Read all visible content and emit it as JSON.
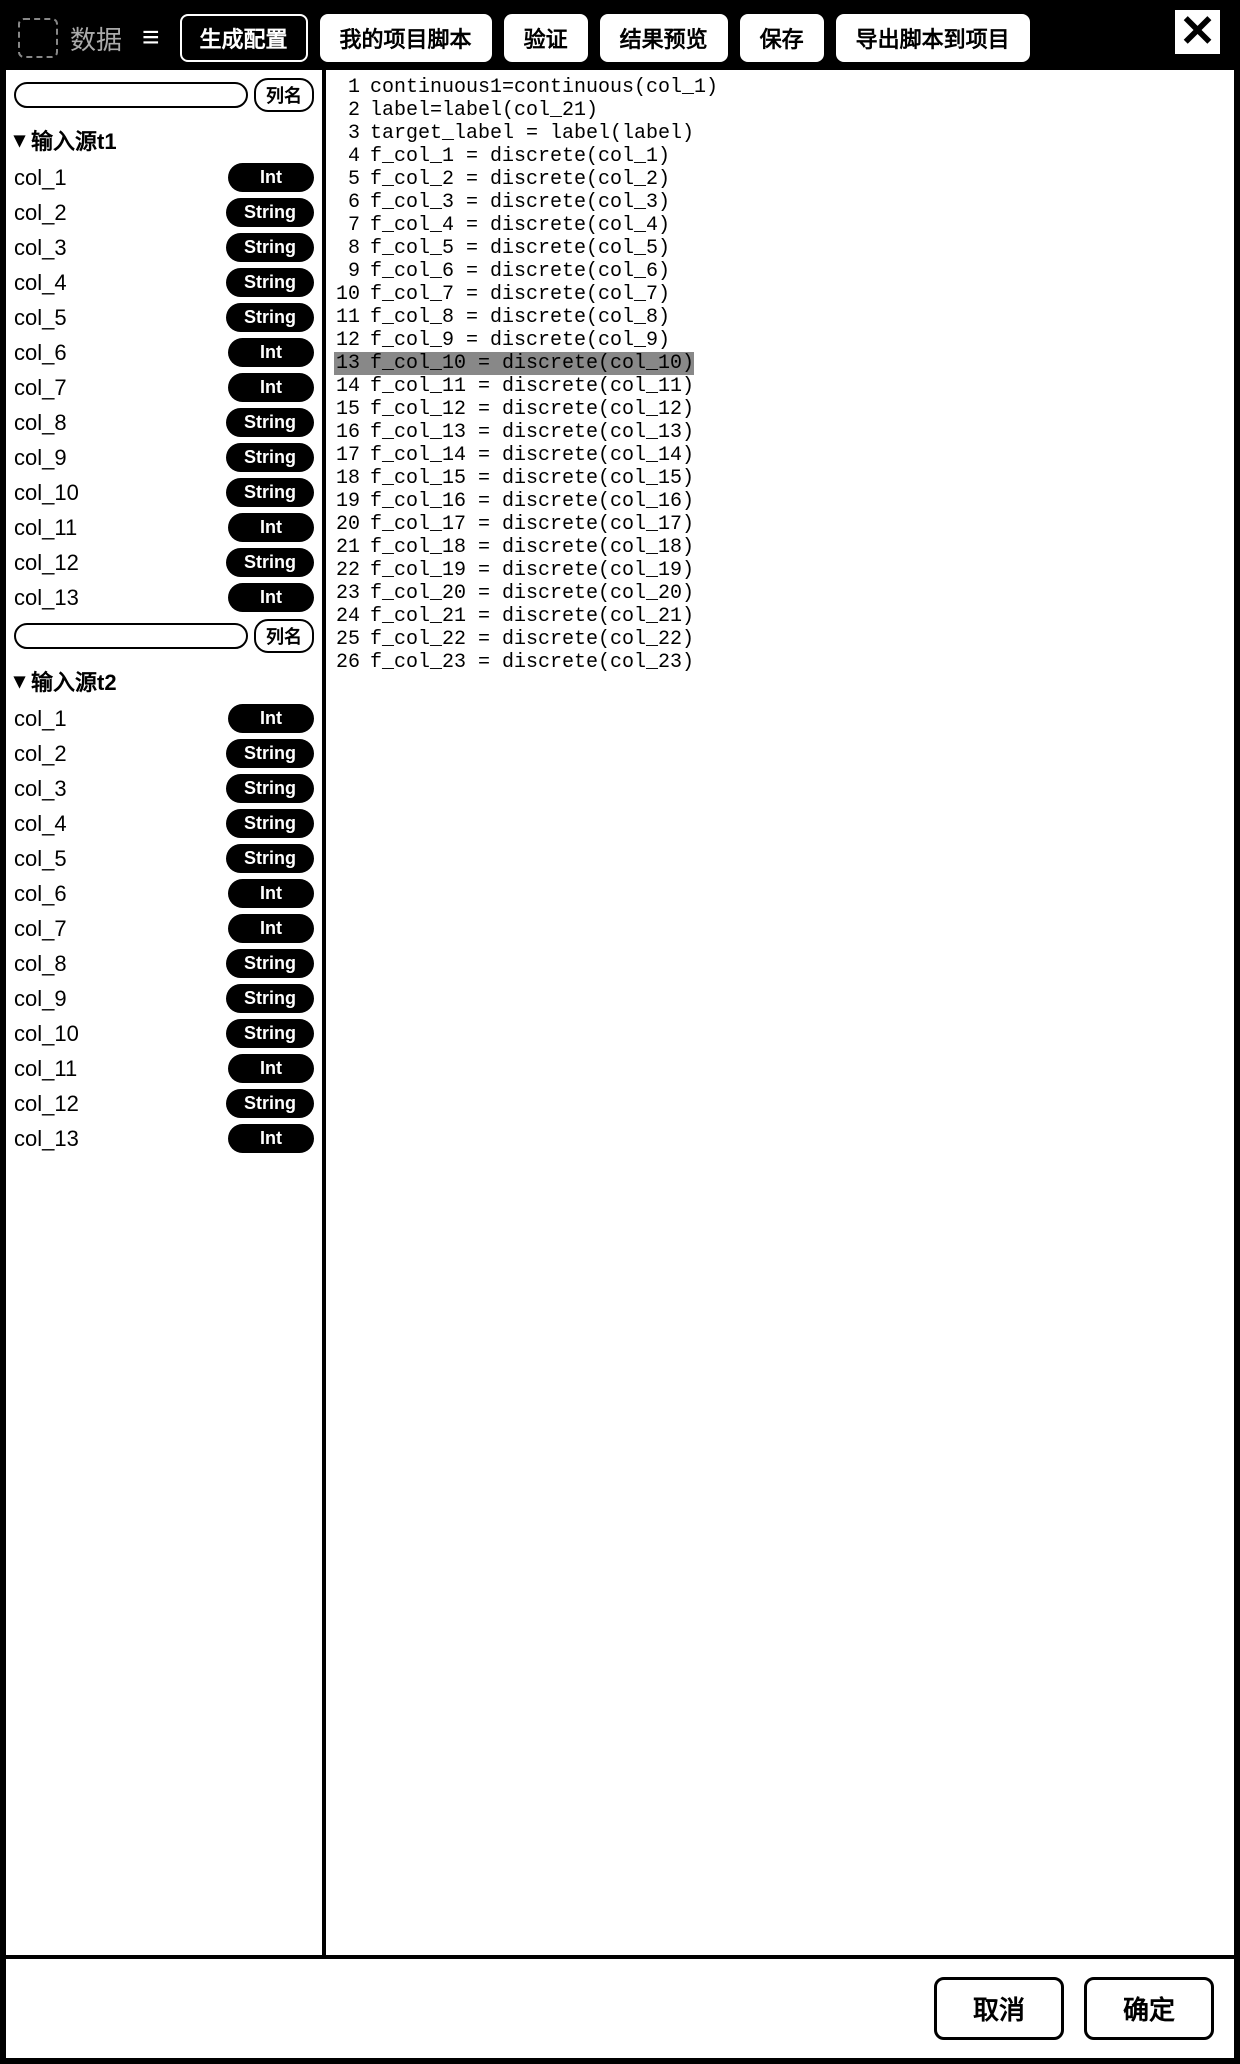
{
  "window": {
    "title": "数据",
    "close_glyph": "✕"
  },
  "header": {
    "menu_glyph": "≡",
    "tabs": {
      "generate": "生成配置",
      "my_script": "我的项目脚本"
    },
    "buttons": {
      "validate": "验证",
      "preview": "结果预览",
      "save": "保存",
      "export": "导出脚本到项目"
    }
  },
  "sidebar": {
    "search_placeholder": "",
    "groups": [
      {
        "title": "输入源t1",
        "count": "列名",
        "columns": [
          {
            "name": "col_1",
            "type": "Int"
          },
          {
            "name": "col_2",
            "type": "String"
          },
          {
            "name": "col_3",
            "type": "String"
          },
          {
            "name": "col_4",
            "type": "String"
          },
          {
            "name": "col_5",
            "type": "String"
          },
          {
            "name": "col_6",
            "type": "Int"
          },
          {
            "name": "col_7",
            "type": "Int"
          },
          {
            "name": "col_8",
            "type": "String"
          },
          {
            "name": "col_9",
            "type": "String"
          },
          {
            "name": "col_10",
            "type": "String"
          },
          {
            "name": "col_11",
            "type": "Int"
          },
          {
            "name": "col_12",
            "type": "String"
          },
          {
            "name": "col_13",
            "type": "Int"
          }
        ]
      },
      {
        "title": "输入源t2",
        "count": "列名",
        "columns": [
          {
            "name": "col_1",
            "type": "Int"
          },
          {
            "name": "col_2",
            "type": "String"
          },
          {
            "name": "col_3",
            "type": "String"
          },
          {
            "name": "col_4",
            "type": "String"
          },
          {
            "name": "col_5",
            "type": "String"
          },
          {
            "name": "col_6",
            "type": "Int"
          },
          {
            "name": "col_7",
            "type": "Int"
          },
          {
            "name": "col_8",
            "type": "String"
          },
          {
            "name": "col_9",
            "type": "String"
          },
          {
            "name": "col_10",
            "type": "String"
          },
          {
            "name": "col_11",
            "type": "Int"
          },
          {
            "name": "col_12",
            "type": "String"
          },
          {
            "name": "col_13",
            "type": "Int"
          }
        ]
      }
    ]
  },
  "editor": {
    "lines": [
      {
        "n": 1,
        "text": "continuous1=continuous(col_1)",
        "hl": false
      },
      {
        "n": 2,
        "text": "label=label(col_21)",
        "hl": false
      },
      {
        "n": 3,
        "text": "target_label = label(label)",
        "hl": false
      },
      {
        "n": 4,
        "text": "f_col_1 = discrete(col_1)",
        "hl": false
      },
      {
        "n": 5,
        "text": "f_col_2 = discrete(col_2)",
        "hl": false
      },
      {
        "n": 6,
        "text": "f_col_3 = discrete(col_3)",
        "hl": false
      },
      {
        "n": 7,
        "text": "f_col_4 = discrete(col_4)",
        "hl": false
      },
      {
        "n": 8,
        "text": "f_col_5 = discrete(col_5)",
        "hl": false
      },
      {
        "n": 9,
        "text": "f_col_6 = discrete(col_6)",
        "hl": false
      },
      {
        "n": 10,
        "text": "f_col_7 = discrete(col_7)",
        "hl": false
      },
      {
        "n": 11,
        "text": "f_col_8 = discrete(col_8)",
        "hl": false
      },
      {
        "n": 12,
        "text": "f_col_9 = discrete(col_9)",
        "hl": false
      },
      {
        "n": 13,
        "text": "f_col_10 = discrete(col_10)",
        "hl": true
      },
      {
        "n": 14,
        "text": "f_col_11 = discrete(col_11)",
        "hl": false
      },
      {
        "n": 15,
        "text": "f_col_12 = discrete(col_12)",
        "hl": false
      },
      {
        "n": 16,
        "text": "f_col_13 = discrete(col_13)",
        "hl": false
      },
      {
        "n": 17,
        "text": "f_col_14 = discrete(col_14)",
        "hl": false
      },
      {
        "n": 18,
        "text": "f_col_15 = discrete(col_15)",
        "hl": false
      },
      {
        "n": 19,
        "text": "f_col_16 = discrete(col_16)",
        "hl": false
      },
      {
        "n": 20,
        "text": "f_col_17 = discrete(col_17)",
        "hl": false
      },
      {
        "n": 21,
        "text": "f_col_18 = discrete(col_18)",
        "hl": false
      },
      {
        "n": 22,
        "text": "f_col_19 = discrete(col_19)",
        "hl": false
      },
      {
        "n": 23,
        "text": "f_col_20 = discrete(col_20)",
        "hl": false
      },
      {
        "n": 24,
        "text": "f_col_21 = discrete(col_21)",
        "hl": false
      },
      {
        "n": 25,
        "text": "f_col_22 = discrete(col_22)",
        "hl": false
      },
      {
        "n": 26,
        "text": "f_col_23 = discrete(col_23)",
        "hl": false
      }
    ]
  },
  "footer": {
    "cancel": "取消",
    "ok": "确定"
  },
  "style": {
    "colors": {
      "header_bg": "#000000",
      "pill_bg": "#000000",
      "border": "#000000",
      "bg": "#ffffff",
      "highlight": "#888888"
    },
    "font_sizes": {
      "header": 22,
      "sidebar": 22,
      "code": 20,
      "footer": 26
    }
  }
}
